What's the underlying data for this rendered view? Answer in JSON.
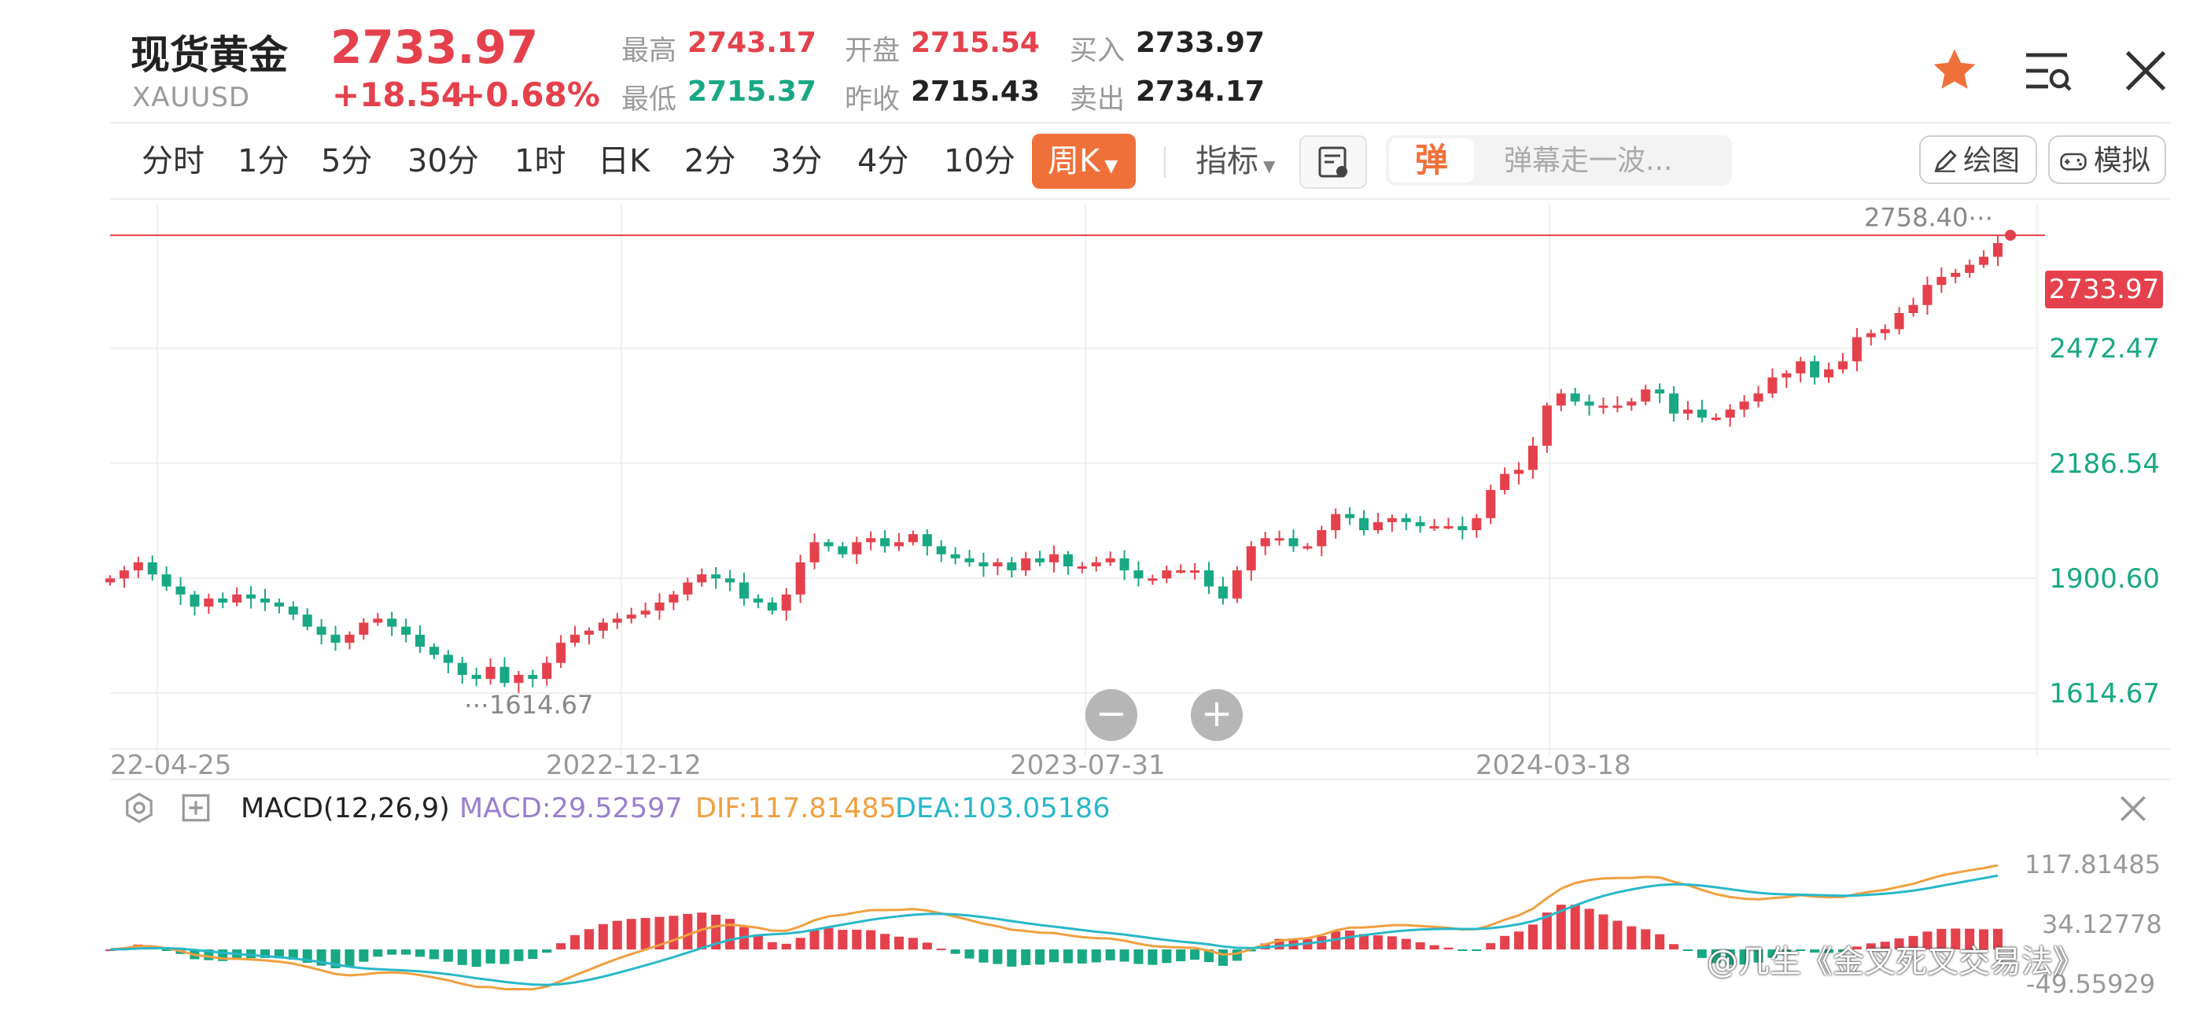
{
  "header": {
    "title": "现货黄金",
    "symbol": "XAUUSD",
    "price": "2733.97",
    "change": "+18.54",
    "change_pct": "+0.68%",
    "stats": {
      "high_label": "最高",
      "high": "2743.17",
      "low_label": "最低",
      "low": "2715.37",
      "open_label": "开盘",
      "open": "2715.54",
      "prev_close_label": "昨收",
      "prev_close": "2715.43",
      "buy_label": "买入",
      "buy": "2733.97",
      "sell_label": "卖出",
      "sell": "2734.17"
    },
    "icons": [
      "star-icon",
      "menu-list-icon",
      "close-icon"
    ]
  },
  "toolbar": {
    "timeframes": [
      "分时",
      "1分",
      "5分",
      "30分",
      "1时",
      "日K",
      "2分",
      "3分",
      "4分",
      "10分"
    ],
    "active_timeframe": "周K",
    "indicator_label": "指标",
    "danmu_icon_text": "弹",
    "danmu_placeholder": "弹幕走一波...",
    "draw_label": "绘图",
    "simulate_label": "模拟"
  },
  "colors": {
    "up": "#e5414d",
    "down": "#18a884",
    "accent": "#f0703a",
    "dif": "#f0a040",
    "dea": "#28b8c8",
    "macd": "#9a7fd0"
  },
  "chart_data": [
    {
      "type": "candlestick",
      "title": "",
      "x_tick_labels": [
        "22-04-25",
        "2022-12-12",
        "2023-07-31",
        "2024-03-18"
      ],
      "y_tick_labels": [
        "2472.47",
        "2186.54",
        "1900.60",
        "1614.67"
      ],
      "ylim": [
        1480,
        2830
      ],
      "last_price_label": "2733.97",
      "high_annotation": "2758.40",
      "low_annotation": "1614.67",
      "closes": [
        1900,
        1920,
        1940,
        1910,
        1880,
        1860,
        1830,
        1850,
        1840,
        1860,
        1850,
        1840,
        1830,
        1810,
        1780,
        1760,
        1740,
        1760,
        1790,
        1800,
        1780,
        1760,
        1730,
        1710,
        1690,
        1660,
        1650,
        1680,
        1640,
        1660,
        1650,
        1690,
        1740,
        1760,
        1770,
        1790,
        1800,
        1810,
        1820,
        1840,
        1860,
        1890,
        1910,
        1900,
        1890,
        1850,
        1840,
        1820,
        1860,
        1940,
        1990,
        1980,
        1960,
        1990,
        2000,
        1980,
        1990,
        2010,
        1980,
        1960,
        1950,
        1940,
        1930,
        1940,
        1920,
        1950,
        1940,
        1960,
        1930,
        1930,
        1940,
        1950,
        1920,
        1900,
        1900,
        1920,
        1920,
        1920,
        1880,
        1850,
        1920,
        1980,
        2000,
        2000,
        1980,
        1980,
        2020,
        2060,
        2050,
        2020,
        2040,
        2050,
        2040,
        2030,
        2030,
        2030,
        2020,
        2050,
        2120,
        2160,
        2170,
        2230,
        2330,
        2360,
        2340,
        2330,
        2330,
        2330,
        2340,
        2370,
        2360,
        2310,
        2320,
        2300,
        2300,
        2320,
        2340,
        2360,
        2400,
        2410,
        2440,
        2400,
        2420,
        2440,
        2500,
        2510,
        2520,
        2560,
        2580,
        2630,
        2650,
        2660,
        2680,
        2700,
        2733.97
      ],
      "macd": {
        "label": "MACD(12,26,9)",
        "macd": "29.52597",
        "dif": "117.81485",
        "dea": "103.05186",
        "y_tick_labels": [
          "117.81485",
          "34.12778",
          "-49.55929"
        ]
      }
    }
  ],
  "watermark": "@几生《金叉死叉交易法》"
}
